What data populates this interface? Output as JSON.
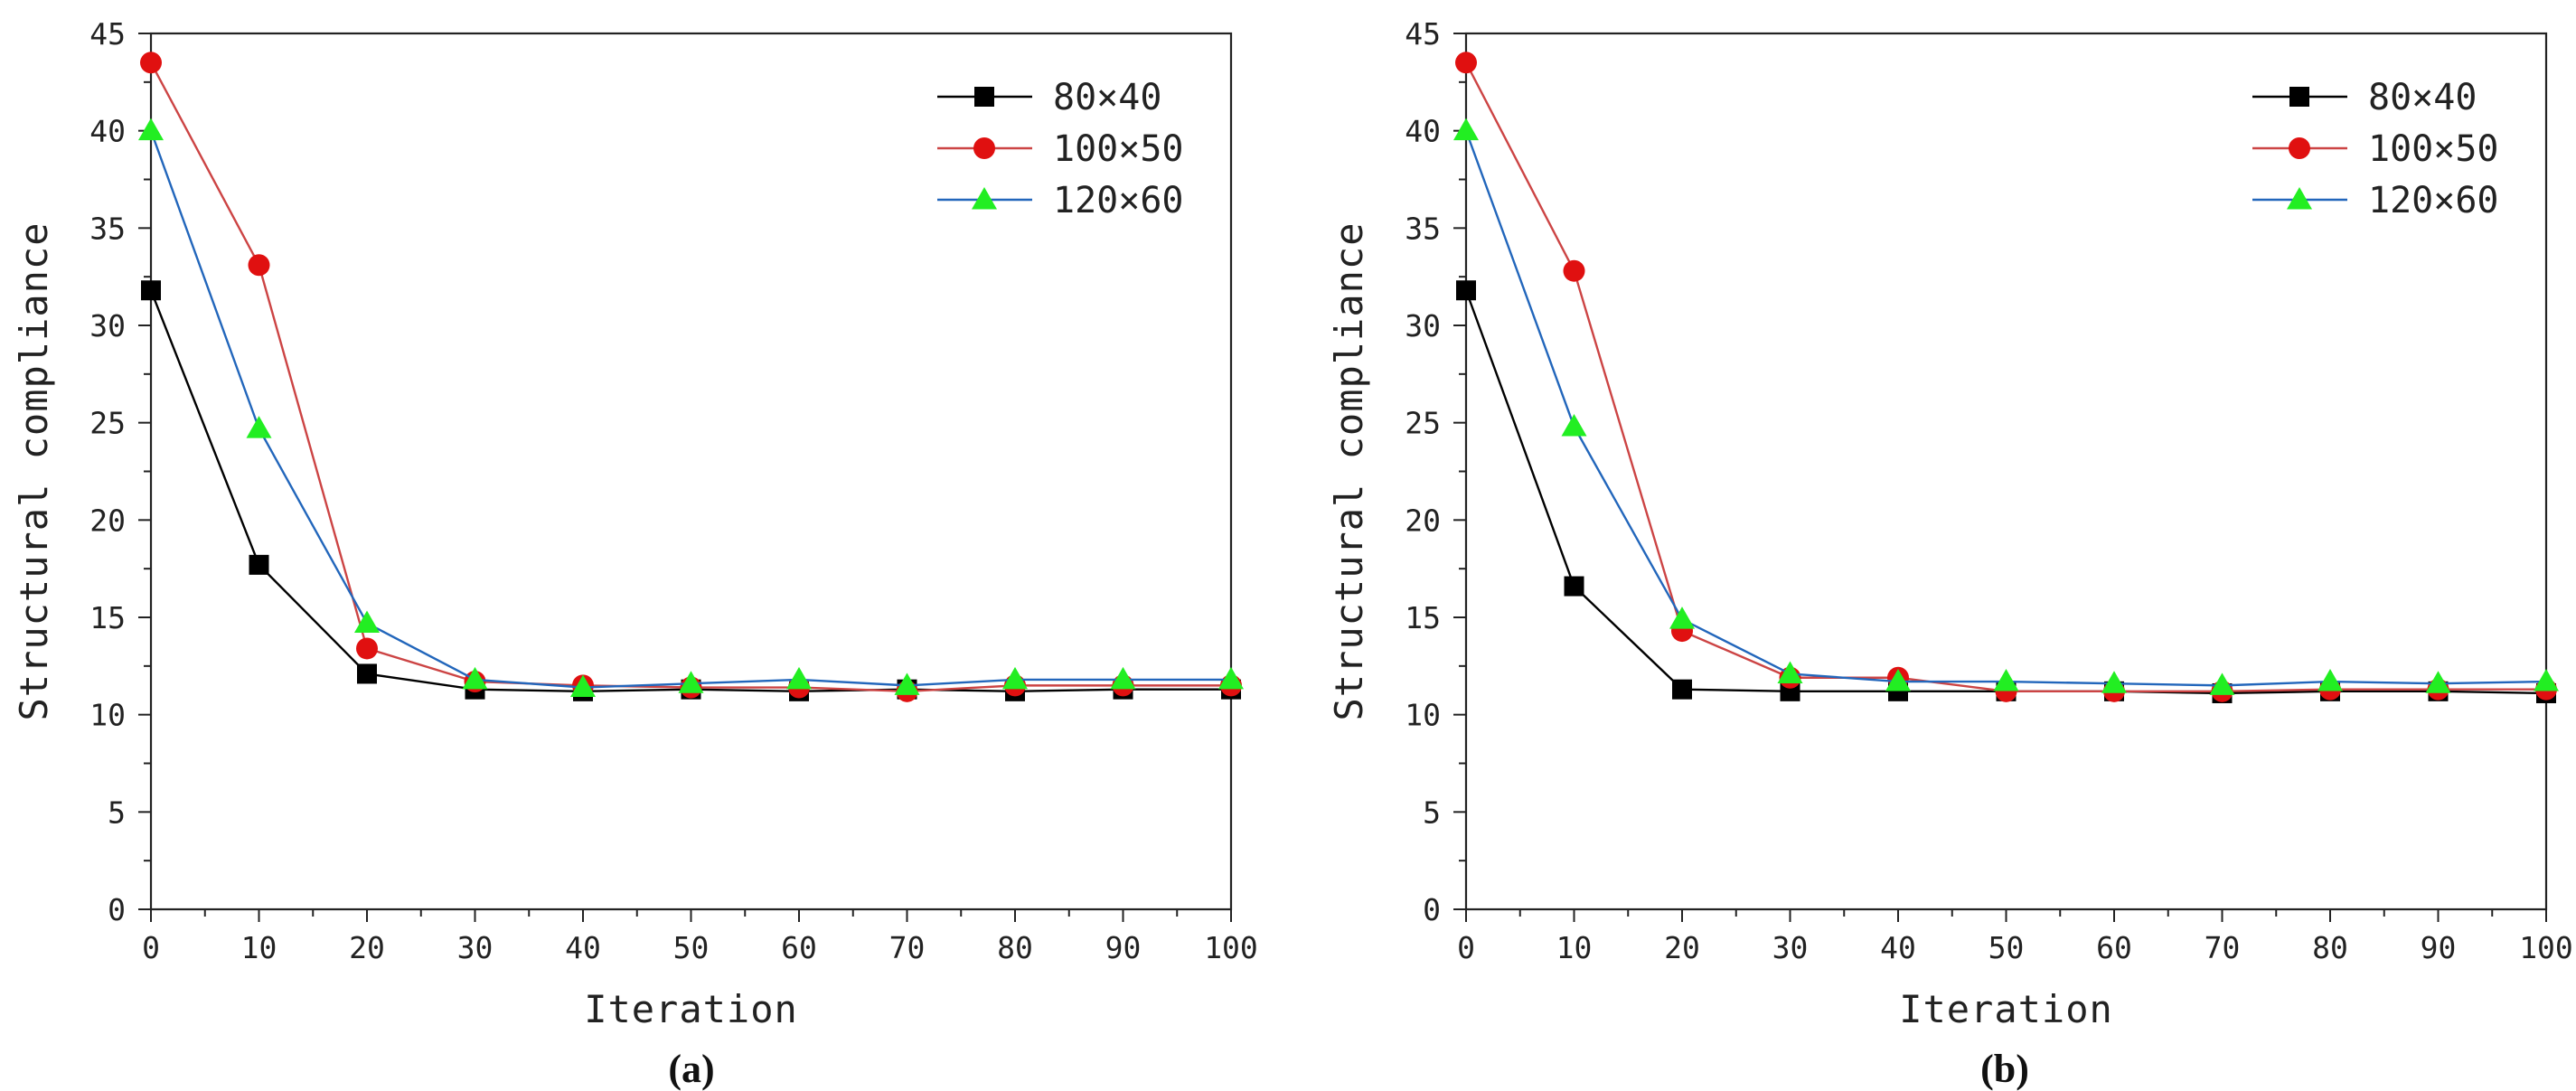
{
  "chart_data": [
    {
      "type": "line",
      "panel_label": "(a)",
      "xlabel": "Iteration",
      "ylabel": "Structural compliance",
      "xlim": [
        0,
        100
      ],
      "ylim": [
        0,
        45
      ],
      "xticks": [
        "0",
        "10",
        "20",
        "30",
        "40",
        "50",
        "60",
        "70",
        "80",
        "90",
        "100"
      ],
      "yticks": [
        "0",
        "5",
        "10",
        "15",
        "20",
        "25",
        "30",
        "35",
        "40",
        "45"
      ],
      "grid": false,
      "legend_position": "top-right",
      "x": [
        0,
        10,
        20,
        30,
        40,
        50,
        60,
        70,
        80,
        90,
        100
      ],
      "series": [
        {
          "name": "80×40",
          "color": "#000000",
          "marker": "square",
          "values": [
            31.8,
            17.7,
            12.1,
            11.3,
            11.2,
            11.3,
            11.2,
            11.3,
            11.2,
            11.3,
            11.3
          ]
        },
        {
          "name": "100×50",
          "color": "#e01010",
          "line_color": "#cc4444",
          "marker": "circle",
          "values": [
            43.5,
            33.1,
            13.4,
            11.7,
            11.5,
            11.4,
            11.4,
            11.2,
            11.5,
            11.5,
            11.5
          ]
        },
        {
          "name": "120×60",
          "color": "#22ee22",
          "line_color": "#2266bb",
          "marker": "triangle",
          "values": [
            40.0,
            24.7,
            14.7,
            11.8,
            11.4,
            11.6,
            11.8,
            11.5,
            11.8,
            11.8,
            11.8
          ]
        }
      ]
    },
    {
      "type": "line",
      "panel_label": "(b)",
      "xlabel": "Iteration",
      "ylabel": "Structural compliance",
      "xlim": [
        0,
        100
      ],
      "ylim": [
        0,
        45
      ],
      "xticks": [
        "0",
        "10",
        "20",
        "30",
        "40",
        "50",
        "60",
        "70",
        "80",
        "90",
        "100"
      ],
      "yticks": [
        "0",
        "5",
        "10",
        "15",
        "20",
        "25",
        "30",
        "35",
        "40",
        "45"
      ],
      "grid": false,
      "legend_position": "top-right",
      "x": [
        0,
        10,
        20,
        30,
        40,
        50,
        60,
        70,
        80,
        90,
        100
      ],
      "series": [
        {
          "name": "80×40",
          "color": "#000000",
          "marker": "square",
          "values": [
            31.8,
            16.6,
            11.3,
            11.2,
            11.2,
            11.2,
            11.2,
            11.1,
            11.2,
            11.2,
            11.1
          ]
        },
        {
          "name": "100×50",
          "color": "#e01010",
          "line_color": "#cc4444",
          "marker": "circle",
          "values": [
            43.5,
            32.8,
            14.3,
            11.9,
            11.9,
            11.2,
            11.2,
            11.2,
            11.3,
            11.3,
            11.3
          ]
        },
        {
          "name": "120×60",
          "color": "#22ee22",
          "line_color": "#2266bb",
          "marker": "triangle",
          "values": [
            40.0,
            24.8,
            14.9,
            12.1,
            11.7,
            11.7,
            11.6,
            11.5,
            11.7,
            11.6,
            11.7
          ]
        }
      ]
    }
  ]
}
